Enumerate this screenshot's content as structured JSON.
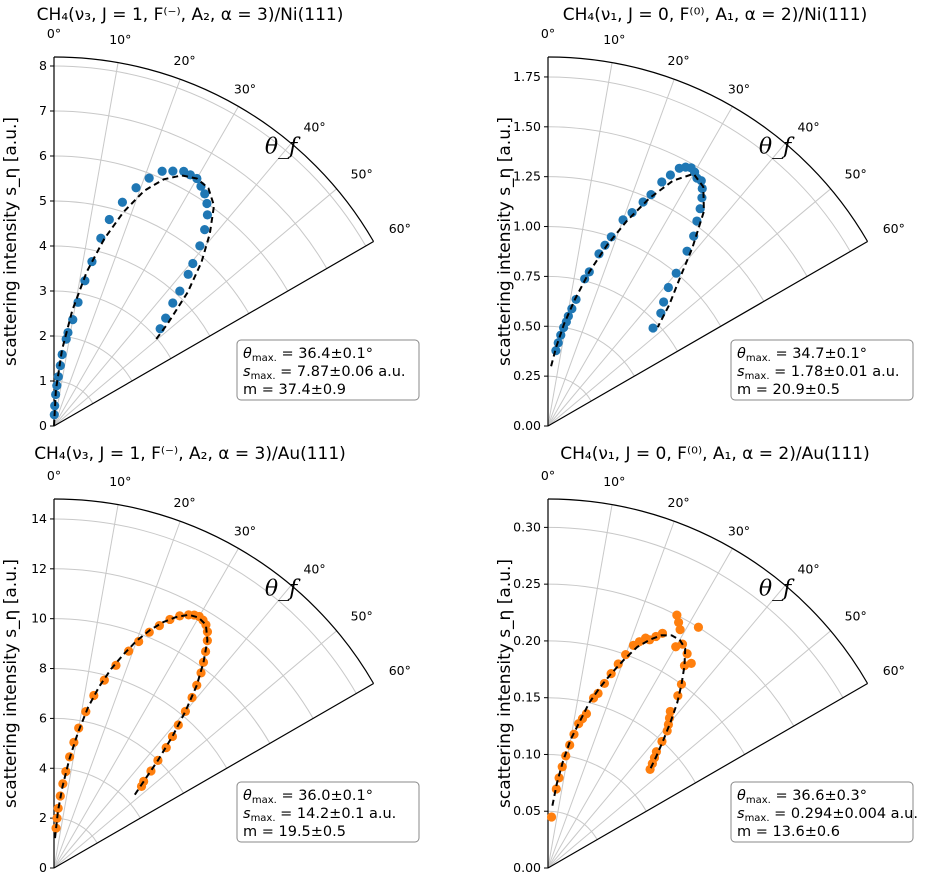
{
  "figure": {
    "description_free": true
  },
  "chart_data": [
    {
      "type": "scatter",
      "title": "CH₄(ν₃, J = 1, F⁽⁻⁾, A₂, α = 3)/Ni(111)",
      "ylabel": "scattering intensity s_η [a.u.]",
      "theta_label": "θ_f",
      "angle_ticks": [
        "0°",
        "10°",
        "20°",
        "30°",
        "40°",
        "50°",
        "60°"
      ],
      "angle_range_deg": [
        0,
        60
      ],
      "rmax": 8.2,
      "radial_ticks": [
        0,
        1,
        2,
        3,
        4,
        5,
        6,
        7,
        8
      ],
      "radial_tick_labels": [
        "0",
        "1",
        "2",
        "3",
        "4",
        "5",
        "6",
        "7",
        "8"
      ],
      "color": "#1f77b4",
      "points": [
        [
          1.5,
          0.25
        ],
        [
          2,
          0.45
        ],
        [
          3,
          0.7
        ],
        [
          4,
          0.9
        ],
        [
          5,
          1.1
        ],
        [
          6,
          1.35
        ],
        [
          6.5,
          1.6
        ],
        [
          8,
          1.95
        ],
        [
          8.5,
          2.1
        ],
        [
          10,
          2.4
        ],
        [
          11,
          2.8
        ],
        [
          12,
          3.3
        ],
        [
          13,
          3.75
        ],
        [
          14,
          4.3
        ],
        [
          15,
          4.75
        ],
        [
          17,
          5.2
        ],
        [
          19,
          5.6
        ],
        [
          21,
          5.9
        ],
        [
          23,
          6.15
        ],
        [
          25,
          6.25
        ],
        [
          27,
          6.35
        ],
        [
          28.5,
          6.35
        ],
        [
          30,
          6.35
        ],
        [
          31.5,
          6.25
        ],
        [
          33,
          6.15
        ],
        [
          34.5,
          6.0
        ],
        [
          36,
          5.8
        ],
        [
          37.5,
          5.5
        ],
        [
          39,
          5.15
        ],
        [
          40.5,
          4.75
        ],
        [
          41.5,
          4.5
        ],
        [
          43,
          4.1
        ],
        [
          44,
          3.8
        ],
        [
          46,
          3.45
        ],
        [
          47.5,
          3.2
        ]
      ],
      "fit": {
        "thetas": [
          0,
          3,
          6,
          9,
          12,
          15,
          18,
          21,
          24,
          27,
          30,
          33,
          36,
          39,
          42,
          45,
          48,
          50
        ],
        "r": [
          0,
          0.8,
          1.7,
          2.6,
          3.5,
          4.3,
          5.0,
          5.6,
          6.0,
          6.25,
          6.35,
          6.3,
          6.05,
          5.5,
          4.9,
          4.2,
          3.4,
          2.9
        ]
      },
      "stats": {
        "theta_max": "36.4±0.1°",
        "s_max": "7.87±0.06 a.u.",
        "m": "37.4±0.9"
      }
    },
    {
      "type": "scatter",
      "title": "CH₄(ν₁, J = 0, F⁽⁰⁾, A₁, α = 2)/Ni(111)",
      "ylabel": "scattering intensity s_η [a.u.]",
      "theta_label": "θ_f",
      "angle_ticks": [
        "0°",
        "10°",
        "20°",
        "30°",
        "40°",
        "50°",
        "60°"
      ],
      "angle_range_deg": [
        0,
        60
      ],
      "rmax": 1.85,
      "radial_ticks": [
        0,
        0.25,
        0.5,
        0.75,
        1.0,
        1.25,
        1.5,
        1.75
      ],
      "radial_tick_labels": [
        "0.00",
        "0.25",
        "0.50",
        "0.75",
        "1.00",
        "1.25",
        "1.50",
        "1.75"
      ],
      "color": "#1f77b4",
      "points": [
        [
          6,
          0.38
        ],
        [
          7,
          0.42
        ],
        [
          8,
          0.46
        ],
        [
          9,
          0.5
        ],
        [
          10,
          0.53
        ],
        [
          10.5,
          0.56
        ],
        [
          11.5,
          0.6
        ],
        [
          12.5,
          0.65
        ],
        [
          14,
          0.76
        ],
        [
          15,
          0.8
        ],
        [
          16.5,
          0.9
        ],
        [
          17.5,
          0.95
        ],
        [
          18.5,
          1.0
        ],
        [
          20,
          1.1
        ],
        [
          21.5,
          1.15
        ],
        [
          23,
          1.22
        ],
        [
          24,
          1.27
        ],
        [
          25,
          1.35
        ],
        [
          26,
          1.4
        ],
        [
          27,
          1.45
        ],
        [
          28,
          1.47
        ],
        [
          29,
          1.48
        ],
        [
          30,
          1.47
        ],
        [
          31,
          1.45
        ],
        [
          32,
          1.45
        ],
        [
          33,
          1.42
        ],
        [
          34,
          1.38
        ],
        [
          35,
          1.33
        ],
        [
          36,
          1.27
        ],
        [
          37.5,
          1.2
        ],
        [
          38.5,
          1.12
        ],
        [
          40,
          1.0
        ],
        [
          41,
          0.92
        ],
        [
          43,
          0.85
        ],
        [
          45,
          0.8
        ],
        [
          47,
          0.72
        ]
      ],
      "fit": {
        "thetas": [
          3,
          6,
          9,
          12,
          15,
          18,
          21,
          24,
          27,
          30,
          33,
          36,
          39,
          42,
          45,
          48
        ],
        "r": [
          0.3,
          0.4,
          0.52,
          0.65,
          0.8,
          0.95,
          1.1,
          1.25,
          1.38,
          1.46,
          1.43,
          1.33,
          1.15,
          0.98,
          0.86,
          0.74
        ]
      },
      "stats": {
        "theta_max": "34.7±0.1°",
        "s_max": "1.78±0.01 a.u.",
        "m": "20.9±0.5"
      }
    },
    {
      "type": "scatter",
      "title": "CH₄(ν₃, J = 1, F⁽⁻⁾, A₂, α = 3)/Au(111)",
      "ylabel": "scattering intensity s_η [a.u.]",
      "theta_label": "θ_f",
      "angle_ticks": [
        "0°",
        "10°",
        "20°",
        "30°",
        "40°",
        "50°",
        "60°"
      ],
      "angle_range_deg": [
        0,
        60
      ],
      "rmax": 14.8,
      "radial_ticks": [
        0,
        2,
        4,
        6,
        8,
        10,
        12,
        14
      ],
      "radial_tick_labels": [
        "0",
        "2",
        "4",
        "6",
        "8",
        "10",
        "12",
        "14"
      ],
      "color": "#ff7f0e",
      "points": [
        [
          3,
          1.6
        ],
        [
          3.5,
          2.0
        ],
        [
          4,
          2.4
        ],
        [
          5,
          2.9
        ],
        [
          6,
          3.4
        ],
        [
          7,
          3.9
        ],
        [
          8,
          4.5
        ],
        [
          9,
          5.1
        ],
        [
          10,
          5.7
        ],
        [
          11.5,
          6.4
        ],
        [
          13,
          7.1
        ],
        [
          15,
          7.8
        ],
        [
          17,
          8.5
        ],
        [
          19,
          9.2
        ],
        [
          20.5,
          9.7
        ],
        [
          22,
          10.2
        ],
        [
          23.5,
          10.6
        ],
        [
          25,
          11.0
        ],
        [
          26.5,
          11.3
        ],
        [
          28,
          11.5
        ],
        [
          29,
          11.6
        ],
        [
          30,
          11.65
        ],
        [
          31,
          11.6
        ],
        [
          32,
          11.5
        ],
        [
          33,
          11.3
        ],
        [
          34,
          11.0
        ],
        [
          35,
          10.6
        ],
        [
          36,
          10.2
        ],
        [
          37,
          9.8
        ],
        [
          38,
          9.3
        ],
        [
          39,
          8.8
        ],
        [
          40,
          8.2
        ],
        [
          41,
          7.6
        ],
        [
          42,
          7.1
        ],
        [
          43,
          6.6
        ],
        [
          44,
          6.0
        ],
        [
          45,
          5.5
        ],
        [
          46,
          5.0
        ],
        [
          47,
          4.8
        ]
      ],
      "fit": {
        "thetas": [
          2,
          4,
          6,
          8,
          10,
          12,
          14,
          16,
          18,
          20,
          22,
          24,
          26,
          28,
          30,
          32,
          34,
          36,
          38,
          40,
          42,
          44,
          46,
          48
        ],
        "r": [
          1.2,
          2.3,
          3.3,
          4.4,
          5.5,
          6.6,
          7.5,
          8.3,
          9.0,
          9.7,
          10.3,
          10.8,
          11.2,
          11.5,
          11.6,
          11.5,
          11.0,
          10.2,
          9.3,
          8.2,
          7.1,
          6.0,
          5.0,
          4.3
        ]
      },
      "stats": {
        "theta_max": "36.0±0.1°",
        "s_max": "14.2±0.1 a.u.",
        "m": "19.5±0.5"
      }
    },
    {
      "type": "scatter",
      "title": "CH₄(ν₁, J = 0, F⁽⁰⁾, A₁, α = 2)/Au(111)",
      "ylabel": "scattering intensity s_η [a.u.]",
      "theta_label": "θ_f",
      "angle_ticks": [
        "0°",
        "10°",
        "20°",
        "30°",
        "40°",
        "50°",
        "60°"
      ],
      "angle_range_deg": [
        0,
        60
      ],
      "rmax": 0.325,
      "radial_ticks": [
        0,
        0.05,
        0.1,
        0.15,
        0.2,
        0.25,
        0.3
      ],
      "radial_tick_labels": [
        "0.00",
        "0.05",
        "0.10",
        "0.15",
        "0.20",
        "0.25",
        "0.30"
      ],
      "color": "#ff7f0e",
      "points": [
        [
          4,
          0.045
        ],
        [
          6,
          0.07
        ],
        [
          7,
          0.08
        ],
        [
          8,
          0.09
        ],
        [
          9,
          0.1
        ],
        [
          10,
          0.11
        ],
        [
          11,
          0.12
        ],
        [
          12,
          0.13
        ],
        [
          13,
          0.135
        ],
        [
          14,
          0.14
        ],
        [
          15,
          0.155
        ],
        [
          16,
          0.16
        ],
        [
          17,
          0.17
        ],
        [
          18,
          0.18
        ],
        [
          19,
          0.19
        ],
        [
          20,
          0.2
        ],
        [
          21,
          0.21
        ],
        [
          22,
          0.215
        ],
        [
          23,
          0.22
        ],
        [
          24,
          0.22
        ],
        [
          25,
          0.225
        ],
        [
          26,
          0.23
        ],
        [
          27,
          0.25
        ],
        [
          28,
          0.245
        ],
        [
          29,
          0.24
        ],
        [
          30,
          0.225
        ],
        [
          31,
          0.23
        ],
        [
          32,
          0.25
        ],
        [
          33,
          0.225
        ],
        [
          34,
          0.215
        ],
        [
          35,
          0.22
        ],
        [
          36,
          0.2
        ],
        [
          37,
          0.19
        ],
        [
          38,
          0.175
        ],
        [
          39,
          0.17
        ],
        [
          40,
          0.165
        ],
        [
          41,
          0.16
        ],
        [
          42,
          0.15
        ],
        [
          43,
          0.14
        ],
        [
          44,
          0.135
        ],
        [
          45,
          0.13
        ],
        [
          46,
          0.125
        ]
      ],
      "fit": {
        "thetas": [
          4,
          6,
          8,
          10,
          12,
          14,
          16,
          18,
          20,
          22,
          24,
          26,
          28,
          30,
          32,
          34,
          36,
          38,
          40,
          42,
          44,
          46
        ],
        "r": [
          0.055,
          0.075,
          0.095,
          0.115,
          0.13,
          0.15,
          0.165,
          0.18,
          0.195,
          0.21,
          0.22,
          0.228,
          0.232,
          0.232,
          0.228,
          0.215,
          0.2,
          0.185,
          0.168,
          0.152,
          0.138,
          0.125
        ]
      },
      "stats": {
        "theta_max": "36.6±0.3°",
        "s_max": "0.294±0.004 a.u.",
        "m": "13.6±0.6"
      }
    }
  ]
}
